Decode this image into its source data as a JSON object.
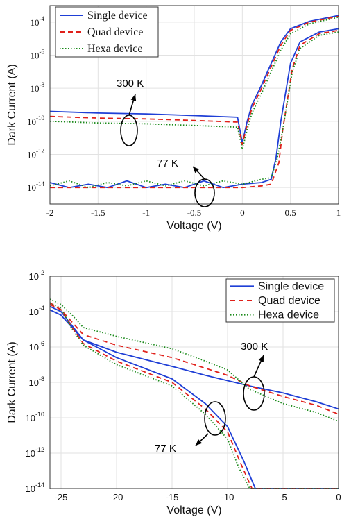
{
  "chart_data": [
    {
      "type": "line",
      "xlabel": "Voltage (V)",
      "ylabel": "Dark Current (A)",
      "xlim": [
        -2,
        1
      ],
      "ylim_exp": [
        -15,
        -3
      ],
      "yscale": "log",
      "grid": true,
      "legend_placement": "top-left",
      "x_ticks": [
        "-2",
        "-1.5",
        "-1",
        "-0.5",
        "0",
        "0.5",
        "1"
      ],
      "y_ticks": [
        {
          "base": "10",
          "exp": "-4"
        },
        {
          "base": "10",
          "exp": "-6"
        },
        {
          "base": "10",
          "exp": "-8"
        },
        {
          "base": "10",
          "exp": "-10"
        },
        {
          "base": "10",
          "exp": "-12"
        },
        {
          "base": "10",
          "exp": "-14"
        }
      ],
      "annotations": [
        "300 K",
        "77 K"
      ],
      "series": [
        {
          "name": "Single device",
          "color": "#1f3fd6",
          "style": "solid",
          "curves": {
            "300K": [
              [
                -2,
                -9.4
              ],
              [
                -1.5,
                -9.5
              ],
              [
                -1,
                -9.55
              ],
              [
                -0.5,
                -9.65
              ],
              [
                -0.05,
                -9.75
              ],
              [
                0,
                -11.3
              ],
              [
                0.05,
                -10
              ],
              [
                0.1,
                -9
              ],
              [
                0.2,
                -7.8
              ],
              [
                0.3,
                -6.5
              ],
              [
                0.4,
                -5.2
              ],
              [
                0.5,
                -4.4
              ],
              [
                0.7,
                -3.95
              ],
              [
                1,
                -3.6
              ]
            ],
            "77K": [
              [
                -2,
                -13.7
              ],
              [
                -1.8,
                -14
              ],
              [
                -1.6,
                -13.8
              ],
              [
                -1.4,
                -14
              ],
              [
                -1.2,
                -13.6
              ],
              [
                -1,
                -14
              ],
              [
                -0.8,
                -13.8
              ],
              [
                -0.6,
                -14
              ],
              [
                -0.4,
                -13.6
              ],
              [
                -0.2,
                -14
              ],
              [
                0,
                -13.8
              ],
              [
                0.2,
                -13.7
              ],
              [
                0.3,
                -13.5
              ],
              [
                0.35,
                -12.2
              ],
              [
                0.4,
                -10
              ],
              [
                0.5,
                -6.5
              ],
              [
                0.6,
                -5.2
              ],
              [
                0.8,
                -4.6
              ],
              [
                1,
                -4.4
              ]
            ]
          }
        },
        {
          "name": "Quad device",
          "color": "#e0201a",
          "style": "dashed",
          "curves": {
            "300K": [
              [
                -2,
                -9.7
              ],
              [
                -1.5,
                -9.8
              ],
              [
                -1,
                -9.85
              ],
              [
                -0.5,
                -9.95
              ],
              [
                -0.05,
                -10.05
              ],
              [
                0,
                -11.4
              ],
              [
                0.05,
                -10.2
              ],
              [
                0.1,
                -9.2
              ],
              [
                0.2,
                -8
              ],
              [
                0.3,
                -6.7
              ],
              [
                0.4,
                -5.4
              ],
              [
                0.5,
                -4.5
              ],
              [
                0.7,
                -4
              ],
              [
                1,
                -3.65
              ]
            ],
            "77K": [
              [
                -2,
                -14
              ],
              [
                -1.5,
                -14
              ],
              [
                -1,
                -14
              ],
              [
                -0.5,
                -14
              ],
              [
                0,
                -14
              ],
              [
                0.2,
                -13.9
              ],
              [
                0.3,
                -13.8
              ],
              [
                0.38,
                -12.5
              ],
              [
                0.42,
                -10.5
              ],
              [
                0.52,
                -6.8
              ],
              [
                0.6,
                -5.4
              ],
              [
                0.8,
                -4.7
              ],
              [
                1,
                -4.5
              ]
            ]
          }
        },
        {
          "name": "Hexa device",
          "color": "#1a8a1a",
          "style": "dotted",
          "curves": {
            "300K": [
              [
                -2,
                -10
              ],
              [
                -1.5,
                -10.1
              ],
              [
                -1,
                -10.15
              ],
              [
                -0.5,
                -10.25
              ],
              [
                -0.05,
                -10.35
              ],
              [
                0,
                -11.7
              ],
              [
                0.05,
                -10.5
              ],
              [
                0.1,
                -9.5
              ],
              [
                0.2,
                -8.3
              ],
              [
                0.3,
                -7
              ],
              [
                0.4,
                -5.7
              ],
              [
                0.5,
                -4.7
              ],
              [
                0.7,
                -4.1
              ],
              [
                1,
                -3.7
              ]
            ],
            "77K": [
              [
                -2,
                -13.9
              ],
              [
                -1.8,
                -13.6
              ],
              [
                -1.6,
                -14
              ],
              [
                -1.4,
                -13.7
              ],
              [
                -1.2,
                -13.9
              ],
              [
                -1,
                -13.6
              ],
              [
                -0.8,
                -13.9
              ],
              [
                -0.6,
                -13.6
              ],
              [
                -0.4,
                -13.9
              ],
              [
                -0.2,
                -13.6
              ],
              [
                0,
                -13.8
              ],
              [
                0.2,
                -13.5
              ],
              [
                0.3,
                -13.4
              ],
              [
                0.36,
                -12.3
              ],
              [
                0.42,
                -10.5
              ],
              [
                0.52,
                -7
              ],
              [
                0.6,
                -5.6
              ],
              [
                0.8,
                -4.8
              ],
              [
                1,
                -4.6
              ]
            ]
          }
        }
      ]
    },
    {
      "type": "line",
      "xlabel": "Voltage (V)",
      "ylabel": "Dark Current (A)",
      "xlim": [
        -26,
        0
      ],
      "ylim_exp": [
        -14,
        -2
      ],
      "yscale": "log",
      "grid": true,
      "legend_placement": "top-right",
      "x_ticks": [
        "-25",
        "-20",
        "-15",
        "-10",
        "-5",
        "0"
      ],
      "y_ticks": [
        {
          "base": "10",
          "exp": "-2"
        },
        {
          "base": "10",
          "exp": "-4"
        },
        {
          "base": "10",
          "exp": "-6"
        },
        {
          "base": "10",
          "exp": "-8"
        },
        {
          "base": "10",
          "exp": "-10"
        },
        {
          "base": "10",
          "exp": "-12"
        },
        {
          "base": "10",
          "exp": "-14"
        }
      ],
      "annotations": [
        "300 K",
        "77 K"
      ],
      "series": [
        {
          "name": "Single device",
          "color": "#1f3fd6",
          "style": "solid",
          "curves": {
            "300K": [
              [
                -26,
                -3.9
              ],
              [
                -25,
                -4.2
              ],
              [
                -24,
                -4.9
              ],
              [
                -23,
                -5.6
              ],
              [
                -20,
                -6.3
              ],
              [
                -15,
                -7.1
              ],
              [
                -12,
                -7.6
              ],
              [
                -10,
                -7.9
              ],
              [
                -8,
                -8.2
              ],
              [
                -5,
                -8.6
              ],
              [
                -2,
                -9.1
              ],
              [
                0,
                -9.5
              ]
            ],
            "77K": [
              [
                -26,
                -3.7
              ],
              [
                -25,
                -4
              ],
              [
                -24,
                -4.8
              ],
              [
                -23,
                -5.6
              ],
              [
                -20,
                -6.6
              ],
              [
                -15,
                -7.8
              ],
              [
                -12,
                -9.2
              ],
              [
                -10,
                -10.5
              ],
              [
                -8.5,
                -12.5
              ],
              [
                -7.5,
                -14
              ],
              [
                0,
                -14
              ]
            ]
          }
        },
        {
          "name": "Quad device",
          "color": "#e0201a",
          "style": "dashed",
          "curves": {
            "300K": [
              [
                -26,
                -3.5
              ],
              [
                -25,
                -3.9
              ],
              [
                -24,
                -4.6
              ],
              [
                -23,
                -5.3
              ],
              [
                -20,
                -5.9
              ],
              [
                -15,
                -6.6
              ],
              [
                -12,
                -7.2
              ],
              [
                -10,
                -7.6
              ],
              [
                -8,
                -8.2
              ],
              [
                -5,
                -8.8
              ],
              [
                -2,
                -9.3
              ],
              [
                0,
                -9.8
              ]
            ],
            "77K": [
              [
                -26,
                -3.6
              ],
              [
                -25,
                -3.9
              ],
              [
                -24,
                -4.9
              ],
              [
                -23,
                -5.8
              ],
              [
                -20,
                -6.8
              ],
              [
                -15,
                -8
              ],
              [
                -12,
                -9.5
              ],
              [
                -10,
                -10.8
              ],
              [
                -8.8,
                -12.6
              ],
              [
                -7.8,
                -14
              ],
              [
                0,
                -14
              ]
            ]
          }
        },
        {
          "name": "Hexa device",
          "color": "#1a8a1a",
          "style": "dotted",
          "curves": {
            "300K": [
              [
                -26,
                -3.3
              ],
              [
                -25,
                -3.6
              ],
              [
                -24,
                -4.2
              ],
              [
                -23,
                -4.9
              ],
              [
                -20,
                -5.4
              ],
              [
                -15,
                -6.1
              ],
              [
                -12,
                -6.8
              ],
              [
                -10,
                -7.3
              ],
              [
                -8,
                -8.4
              ],
              [
                -5,
                -9.2
              ],
              [
                -2,
                -9.7
              ],
              [
                0,
                -10.2
              ]
            ],
            "77K": [
              [
                -26,
                -3.5
              ],
              [
                -25,
                -3.8
              ],
              [
                -24,
                -5
              ],
              [
                -23,
                -5.9
              ],
              [
                -20,
                -7
              ],
              [
                -15,
                -8.2
              ],
              [
                -12,
                -9.8
              ],
              [
                -10,
                -11.2
              ],
              [
                -9,
                -12.8
              ],
              [
                -8,
                -14
              ],
              [
                0,
                -14
              ]
            ]
          }
        }
      ]
    }
  ]
}
